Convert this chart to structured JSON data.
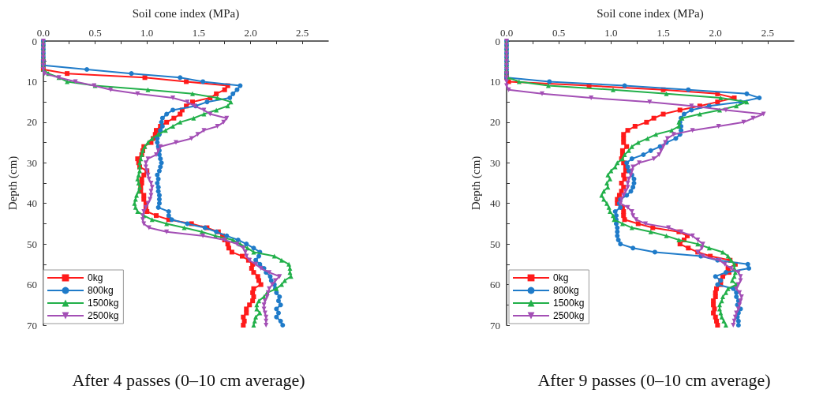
{
  "chart_data": [
    {
      "type": "line",
      "title": "After 4 passes (0–10 cm average)",
      "xlabel": "Soil cone index (MPa)",
      "ylabel": "Depth (cm)",
      "xlim": [
        0,
        2.75
      ],
      "xticks": [
        {
          "value": 0,
          "label": "0.0"
        },
        {
          "value": 0.25,
          "label": null
        },
        {
          "value": 0.5,
          "label": "0.5"
        },
        {
          "value": 0.75,
          "label": null
        },
        {
          "value": 1,
          "label": "1.0"
        },
        {
          "value": 1.25,
          "label": null
        },
        {
          "value": 1.5,
          "label": "1.5"
        },
        {
          "value": 1.75,
          "label": null
        },
        {
          "value": 2,
          "label": "2.0"
        },
        {
          "value": 2.25,
          "label": null
        },
        {
          "value": 2.5,
          "label": "2.5"
        }
      ],
      "ylim": [
        70,
        0
      ],
      "yticks": [
        0,
        {
          "value": 5,
          "label": null
        },
        10,
        {
          "value": 15,
          "label": null
        },
        20,
        {
          "value": 25,
          "label": null
        },
        30,
        {
          "value": 35,
          "label": null
        },
        40,
        {
          "value": 45,
          "label": null
        },
        50,
        {
          "value": 55,
          "label": null
        },
        60,
        {
          "value": 65,
          "label": null
        },
        70
      ],
      "grid": false,
      "legend": "bottom left",
      "line_style": "solid",
      "series": [
        {
          "name": "0kg",
          "color": "#ff1a1a",
          "marker": "square",
          "x": [
            null,
            null,
            null,
            null,
            null,
            0,
            0,
            0,
            0.23,
            0.98,
            1.38,
            1.78,
            1.75,
            1.67,
            1.61,
            1.44,
            1.38,
            1.34,
            1.32,
            1.26,
            1.19,
            1.13,
            1.09,
            1.08,
            1.06,
            1.04,
            0.97,
            0.96,
            0.95,
            0.91,
            0.92,
            0.93,
            1.0,
            0.97,
            0.95,
            0.95,
            0.94,
            0.94,
            0.97,
            0.97,
            0.99,
            0.99,
            1.0,
            1.09,
            1.21,
            1.43,
            1.58,
            1.69,
            1.73,
            1.75,
            1.78,
            1.79,
            1.82,
            1.92,
            1.98,
            2.02,
            2.01,
            2.03,
            2.07,
            2.08,
            2.1,
            2.03,
            2.02,
            2.03,
            2.02,
            1.99,
            1.96,
            1.96,
            1.93,
            1.94,
            1.93
          ],
          "values": [
            null,
            null,
            null,
            null,
            null,
            5,
            6,
            7,
            8,
            9,
            10,
            11,
            12,
            13,
            14,
            15,
            16,
            17,
            18,
            19,
            20,
            21,
            22,
            23,
            24,
            25,
            26,
            27,
            28,
            29,
            30,
            31,
            32,
            33,
            34,
            35,
            36,
            37,
            38,
            39,
            40,
            41,
            42,
            43,
            44,
            45,
            46,
            47,
            48,
            49,
            50,
            51,
            52,
            53,
            54,
            55,
            56,
            57,
            58,
            59,
            60,
            61,
            62,
            63,
            64,
            65,
            66,
            67,
            68,
            69,
            70
          ]
        },
        {
          "name": "800kg",
          "color": "#1f7bc9",
          "marker": "circle",
          "x": [
            0,
            0,
            0,
            0,
            0,
            0,
            0,
            0.42,
            0.85,
            1.32,
            1.54,
            1.9,
            1.87,
            1.83,
            1.8,
            1.58,
            1.47,
            1.25,
            1.19,
            1.15,
            1.14,
            1.15,
            1.13,
            1.12,
            1.1,
            1.1,
            1.11,
            1.12,
            1.12,
            1.13,
            1.14,
            1.13,
            1.12,
            1.1,
            1.11,
            1.1,
            1.11,
            1.11,
            1.12,
            1.12,
            1.12,
            1.11,
            1.21,
            1.21,
            1.24,
            1.39,
            1.56,
            1.67,
            1.77,
            1.88,
            1.96,
            2.03,
            2.09,
            2.08,
            2.05,
            2.09,
            2.13,
            2.15,
            2.19,
            2.2,
            2.23,
            2.24,
            2.25,
            2.28,
            2.27,
            2.29,
            2.25,
            2.27,
            2.25,
            2.29,
            2.31
          ],
          "values": [
            0,
            1,
            2,
            3,
            4,
            5,
            6,
            7,
            8,
            9,
            10,
            11,
            12,
            13,
            14,
            15,
            16,
            17,
            18,
            19,
            20,
            21,
            22,
            23,
            24,
            25,
            26,
            27,
            28,
            29,
            30,
            31,
            32,
            33,
            34,
            35,
            36,
            37,
            38,
            39,
            40,
            41,
            42,
            43,
            44,
            45,
            46,
            47,
            48,
            49,
            50,
            51,
            52,
            53,
            54,
            55,
            56,
            57,
            58,
            59,
            60,
            61,
            62,
            63,
            64,
            65,
            66,
            67,
            68,
            69,
            70
          ]
        },
        {
          "name": "1500kg",
          "color": "#22b04a",
          "marker": "triangle",
          "x": [
            0,
            0,
            0,
            0,
            0,
            0,
            0,
            0,
            0.05,
            0.15,
            0.23,
            0.5,
            1.01,
            1.44,
            1.68,
            1.81,
            1.78,
            1.67,
            1.55,
            1.45,
            1.32,
            1.25,
            1.18,
            1.11,
            1.05,
            1.01,
            0.98,
            0.96,
            0.95,
            0.94,
            0.93,
            0.93,
            0.93,
            0.92,
            0.91,
            0.92,
            0.93,
            0.92,
            0.9,
            0.89,
            0.88,
            0.89,
            0.91,
            0.97,
            1.05,
            1.19,
            1.36,
            1.53,
            1.66,
            1.83,
            1.9,
            1.97,
            2.03,
            2.23,
            2.3,
            2.37,
            2.38,
            2.38,
            2.39,
            2.33,
            2.3,
            2.25,
            2.16,
            2.13,
            2.08,
            2.06,
            2.06,
            2.09,
            2.05,
            2.04,
            2.03
          ],
          "values": [
            0,
            1,
            2,
            3,
            4,
            5,
            6,
            7,
            8,
            9,
            10,
            11,
            12,
            13,
            14,
            15,
            16,
            17,
            18,
            19,
            20,
            21,
            22,
            23,
            24,
            25,
            26,
            27,
            28,
            29,
            30,
            31,
            32,
            33,
            34,
            35,
            36,
            37,
            38,
            39,
            40,
            41,
            42,
            43,
            44,
            45,
            46,
            47,
            48,
            49,
            50,
            51,
            52,
            53,
            54,
            55,
            56,
            57,
            58,
            59,
            60,
            61,
            62,
            63,
            64,
            65,
            66,
            67,
            68,
            69,
            70
          ]
        },
        {
          "name": "2500kg",
          "color": "#a34fb5",
          "marker": "triangle-down",
          "x": [
            0,
            0,
            0,
            0,
            0,
            0,
            0,
            0,
            0.01,
            0.15,
            0.31,
            0.49,
            0.65,
            0.91,
            1.25,
            1.39,
            1.46,
            1.55,
            1.61,
            1.77,
            1.74,
            1.68,
            1.55,
            1.49,
            1.43,
            1.28,
            1.13,
            1.11,
            1.09,
            1.01,
            0.99,
            0.99,
            1.0,
            1.01,
            1.02,
            1.04,
            1.05,
            1.04,
            1.04,
            1.03,
            1.01,
            0.99,
            0.97,
            0.96,
            0.96,
            0.97,
            1.02,
            1.19,
            1.54,
            1.75,
            1.87,
            1.93,
            1.95,
            1.96,
            1.99,
            2.05,
            2.1,
            2.18,
            2.28,
            2.24,
            2.21,
            2.18,
            2.17,
            2.16,
            2.14,
            2.13,
            2.13,
            2.14,
            2.15,
            2.15,
            2.15
          ],
          "values": [
            0,
            1,
            2,
            3,
            4,
            5,
            6,
            7,
            8,
            9,
            10,
            11,
            12,
            13,
            14,
            15,
            16,
            17,
            18,
            19,
            20,
            21,
            22,
            23,
            24,
            25,
            26,
            27,
            28,
            29,
            30,
            31,
            32,
            33,
            34,
            35,
            36,
            37,
            38,
            39,
            40,
            41,
            42,
            43,
            44,
            45,
            46,
            47,
            48,
            49,
            50,
            51,
            52,
            53,
            54,
            55,
            56,
            57,
            58,
            59,
            60,
            61,
            62,
            63,
            64,
            65,
            66,
            67,
            68,
            69,
            70
          ]
        }
      ]
    },
    {
      "type": "line",
      "title": "After 9 passes (0–10 cm average)",
      "xlabel": "Soil cone index (MPa)",
      "ylabel": "Depth (cm)",
      "xlim": [
        0,
        2.75
      ],
      "xticks": [
        {
          "value": 0,
          "label": "0.0"
        },
        {
          "value": 0.25,
          "label": null
        },
        {
          "value": 0.5,
          "label": "0.5"
        },
        {
          "value": 0.75,
          "label": null
        },
        {
          "value": 1,
          "label": "1.0"
        },
        {
          "value": 1.25,
          "label": null
        },
        {
          "value": 1.5,
          "label": "1.5"
        },
        {
          "value": 1.75,
          "label": null
        },
        {
          "value": 2,
          "label": "2.0"
        },
        {
          "value": 2.25,
          "label": null
        },
        {
          "value": 2.5,
          "label": "2.5"
        }
      ],
      "ylim": [
        70,
        0
      ],
      "yticks": [
        0,
        {
          "value": 5,
          "label": null
        },
        10,
        {
          "value": 15,
          "label": null
        },
        20,
        {
          "value": 25,
          "label": null
        },
        30,
        {
          "value": 35,
          "label": null
        },
        40,
        {
          "value": 45,
          "label": null
        },
        50,
        {
          "value": 55,
          "label": null
        },
        60,
        {
          "value": 65,
          "label": null
        },
        70
      ],
      "grid": false,
      "legend": "bottom left",
      "line_style": "solid",
      "series": [
        {
          "name": "0kg",
          "color": "#ff1a1a",
          "marker": "square",
          "x": [
            null,
            null,
            null,
            null,
            null,
            null,
            null,
            null,
            0,
            0,
            0.02,
            0.79,
            1.5,
            2.02,
            2.18,
            2.02,
            1.85,
            1.66,
            1.5,
            1.41,
            1.34,
            1.23,
            1.16,
            1.12,
            1.12,
            1.12,
            1.15,
            1.11,
            1.11,
            1.1,
            1.12,
            1.14,
            1.14,
            1.12,
            1.13,
            1.1,
            1.12,
            1.1,
            1.08,
            1.06,
            1.06,
            1.11,
            1.12,
            1.12,
            1.13,
            1.26,
            1.4,
            1.65,
            1.73,
            1.7,
            1.66,
            1.74,
            1.83,
            1.95,
            2.14,
            2.19,
            2.12,
            2.13,
            2.07,
            2.05,
            2.05,
            2.01,
            2.0,
            2.0,
            1.98,
            1.98,
            1.99,
            1.98,
            2.0,
            2.01,
            2.02
          ],
          "values": [
            null,
            null,
            null,
            null,
            null,
            null,
            null,
            null,
            8,
            9,
            10,
            11,
            12,
            13,
            14,
            15,
            16,
            17,
            18,
            19,
            20,
            21,
            22,
            23,
            24,
            25,
            26,
            27,
            28,
            29,
            30,
            31,
            32,
            33,
            34,
            35,
            36,
            37,
            38,
            39,
            40,
            41,
            42,
            43,
            44,
            45,
            46,
            47,
            48,
            49,
            50,
            51,
            52,
            53,
            54,
            55,
            56,
            57,
            58,
            59,
            60,
            61,
            62,
            63,
            64,
            65,
            66,
            67,
            68,
            69,
            70
          ]
        },
        {
          "name": "800kg",
          "color": "#1f7bc9",
          "marker": "circle",
          "x": [
            0,
            0,
            0,
            0,
            0,
            0,
            0,
            0,
            0,
            0,
            0.41,
            1.13,
            1.74,
            2.3,
            2.42,
            2.24,
            1.94,
            1.77,
            1.7,
            1.67,
            1.66,
            1.67,
            1.67,
            1.66,
            1.62,
            1.53,
            1.47,
            1.38,
            1.31,
            1.2,
            1.15,
            1.16,
            1.17,
            1.2,
            1.22,
            1.22,
            1.21,
            1.19,
            1.15,
            1.09,
            1.08,
            1.09,
            1.04,
            1.05,
            1.05,
            1.05,
            1.06,
            1.06,
            1.06,
            1.07,
            1.09,
            1.21,
            1.42,
            1.86,
            2.02,
            2.31,
            2.32,
            2.1,
            2.0,
            2.05,
            2.02,
            2.17,
            2.2,
            2.2,
            2.22,
            2.21,
            2.24,
            2.22,
            2.21,
            2.22,
            2.22
          ],
          "values": [
            0,
            1,
            2,
            3,
            4,
            5,
            6,
            7,
            8,
            9,
            10,
            11,
            12,
            13,
            14,
            15,
            16,
            17,
            18,
            19,
            20,
            21,
            22,
            23,
            24,
            25,
            26,
            27,
            28,
            29,
            30,
            31,
            32,
            33,
            34,
            35,
            36,
            37,
            38,
            39,
            40,
            41,
            42,
            43,
            44,
            45,
            46,
            47,
            48,
            49,
            50,
            51,
            52,
            53,
            54,
            55,
            56,
            57,
            58,
            59,
            60,
            61,
            62,
            63,
            64,
            65,
            66,
            67,
            68,
            69,
            70
          ]
        },
        {
          "name": "1500kg",
          "color": "#22b04a",
          "marker": "triangle",
          "x": [
            0,
            0,
            0,
            0,
            0,
            0,
            0,
            0,
            0,
            0.01,
            0.12,
            0.4,
            1.02,
            1.53,
            2.05,
            2.3,
            2.2,
            2.04,
            1.85,
            1.68,
            1.65,
            1.65,
            1.58,
            1.43,
            1.35,
            1.26,
            1.2,
            1.17,
            1.13,
            1.11,
            1.06,
            1.04,
            1.0,
            0.97,
            0.99,
            0.96,
            0.97,
            0.93,
            0.91,
            0.93,
            0.96,
            0.98,
            0.99,
            1.02,
            1.03,
            1.11,
            1.2,
            1.38,
            1.53,
            1.65,
            1.83,
            1.94,
            2.07,
            2.12,
            2.15,
            2.18,
            2.18,
            2.19,
            2.18,
            2.16,
            2.2,
            2.12,
            2.1,
            2.07,
            2.06,
            2.04,
            2.04,
            2.05,
            2.06,
            2.08,
            2.1
          ],
          "values": [
            0,
            1,
            2,
            3,
            4,
            5,
            6,
            7,
            8,
            9,
            10,
            11,
            12,
            13,
            14,
            15,
            16,
            17,
            18,
            19,
            20,
            21,
            22,
            23,
            24,
            25,
            26,
            27,
            28,
            29,
            30,
            31,
            32,
            33,
            34,
            35,
            36,
            37,
            38,
            39,
            40,
            41,
            42,
            43,
            44,
            45,
            46,
            47,
            48,
            49,
            50,
            51,
            52,
            53,
            54,
            55,
            56,
            57,
            58,
            59,
            60,
            61,
            62,
            63,
            64,
            65,
            66,
            67,
            68,
            69,
            70
          ]
        },
        {
          "name": "2500kg",
          "color": "#a34fb5",
          "marker": "triangle-down",
          "x": [
            0,
            0,
            0,
            0,
            0,
            0,
            0,
            0,
            0,
            0,
            0,
            0,
            0.02,
            0.34,
            0.81,
            1.37,
            1.77,
            2.1,
            2.46,
            2.36,
            2.27,
            2.03,
            1.78,
            1.6,
            1.54,
            1.52,
            1.5,
            1.48,
            1.46,
            1.41,
            1.27,
            1.21,
            1.2,
            1.19,
            1.17,
            1.16,
            1.16,
            1.14,
            1.12,
            1.1,
            1.09,
            1.16,
            1.2,
            1.21,
            1.24,
            1.33,
            1.55,
            1.67,
            1.78,
            1.83,
            1.88,
            1.87,
            1.83,
            1.88,
            2.04,
            2.09,
            2.15,
            2.22,
            2.24,
            2.24,
            2.22,
            2.2,
            2.23,
            2.25,
            2.24,
            2.23,
            2.22,
            2.2,
            2.19,
            2.18,
            2.17
          ],
          "values": [
            0,
            1,
            2,
            3,
            4,
            5,
            6,
            7,
            8,
            9,
            10,
            11,
            12,
            13,
            14,
            15,
            16,
            17,
            18,
            19,
            20,
            21,
            22,
            23,
            24,
            25,
            26,
            27,
            28,
            29,
            30,
            31,
            32,
            33,
            34,
            35,
            36,
            37,
            38,
            39,
            40,
            41,
            42,
            43,
            44,
            45,
            46,
            47,
            48,
            49,
            50,
            51,
            52,
            53,
            54,
            55,
            56,
            57,
            58,
            59,
            60,
            61,
            62,
            63,
            64,
            65,
            66,
            67,
            68,
            69,
            70
          ]
        }
      ]
    }
  ]
}
